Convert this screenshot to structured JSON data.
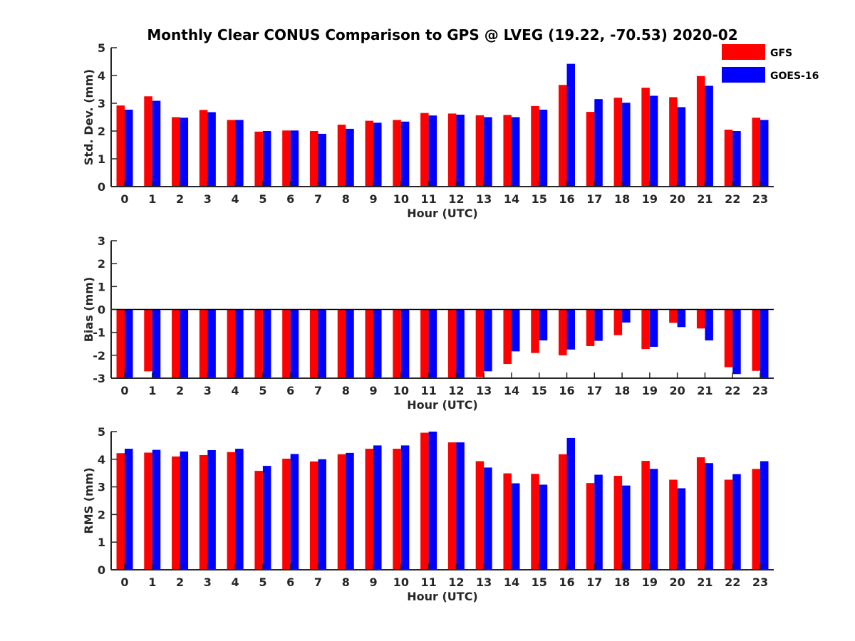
{
  "title": "Monthly Clear CONUS Comparison to GPS @ LVEG (19.22, -70.53) 2020-02",
  "legend": {
    "placement": "top-right",
    "items": [
      {
        "name": "GFS",
        "color": "#ff0000"
      },
      {
        "name": "GOES-16",
        "color": "#0000ff"
      }
    ]
  },
  "chart_data": [
    {
      "type": "bar",
      "xlabel": "Hour (UTC)",
      "ylabel": "Std. Dev. (mm)",
      "ylim": [
        0,
        5
      ],
      "yticks": [
        "0",
        "1",
        "2",
        "3",
        "4",
        "5"
      ],
      "categories": [
        "0",
        "1",
        "2",
        "3",
        "4",
        "5",
        "6",
        "7",
        "8",
        "9",
        "10",
        "11",
        "12",
        "13",
        "14",
        "15",
        "16",
        "17",
        "18",
        "19",
        "20",
        "21",
        "22",
        "23"
      ],
      "series": [
        {
          "name": "GFS",
          "values": [
            2.92,
            3.25,
            2.5,
            2.76,
            2.4,
            1.98,
            2.02,
            2.0,
            2.23,
            2.37,
            2.4,
            2.65,
            2.63,
            2.57,
            2.58,
            2.9,
            3.66,
            2.69,
            3.2,
            3.56,
            3.22,
            3.98,
            2.05,
            2.48
          ]
        },
        {
          "name": "GOES-16",
          "values": [
            2.77,
            3.09,
            2.48,
            2.68,
            2.4,
            2.0,
            2.02,
            1.9,
            2.08,
            2.3,
            2.34,
            2.56,
            2.59,
            2.5,
            2.5,
            2.77,
            4.42,
            3.15,
            3.02,
            3.27,
            2.86,
            3.63,
            2.0,
            2.4
          ]
        }
      ]
    },
    {
      "type": "bar",
      "xlabel": "Hour (UTC)",
      "ylabel": "Bias (mm)",
      "ylim": [
        -3,
        3
      ],
      "yticks": [
        "-3",
        "-2",
        "-1",
        "0",
        "1",
        "2",
        "3"
      ],
      "categories": [
        "0",
        "1",
        "2",
        "3",
        "4",
        "5",
        "6",
        "7",
        "8",
        "9",
        "10",
        "11",
        "12",
        "13",
        "14",
        "15",
        "16",
        "17",
        "18",
        "19",
        "20",
        "21",
        "22",
        "23"
      ],
      "series": [
        {
          "name": "GFS",
          "values": [
            -3.0,
            -2.7,
            -3.0,
            -3.0,
            -3.0,
            -3.0,
            -3.0,
            -3.0,
            -3.0,
            -3.0,
            -3.0,
            -3.0,
            -3.0,
            -2.95,
            -2.38,
            -1.9,
            -2.0,
            -1.6,
            -1.12,
            -1.73,
            -0.58,
            -0.83,
            -2.52,
            -2.68
          ]
        },
        {
          "name": "GOES-16",
          "values": [
            -3.0,
            -3.0,
            -3.0,
            -3.0,
            -3.0,
            -3.0,
            -3.0,
            -3.0,
            -3.0,
            -3.0,
            -3.0,
            -3.0,
            -3.0,
            -2.7,
            -1.83,
            -1.35,
            -1.75,
            -1.37,
            -0.57,
            -1.63,
            -0.77,
            -1.35,
            -2.82,
            -3.0
          ]
        }
      ]
    },
    {
      "type": "bar",
      "xlabel": "Hour (UTC)",
      "ylabel": "RMS (mm)",
      "ylim": [
        0,
        5
      ],
      "yticks": [
        "0",
        "1",
        "2",
        "3",
        "4",
        "5"
      ],
      "categories": [
        "0",
        "1",
        "2",
        "3",
        "4",
        "5",
        "6",
        "7",
        "8",
        "9",
        "10",
        "11",
        "12",
        "13",
        "14",
        "15",
        "16",
        "17",
        "18",
        "19",
        "20",
        "21",
        "22",
        "23"
      ],
      "series": [
        {
          "name": "GFS",
          "values": [
            4.22,
            4.24,
            4.1,
            4.15,
            4.26,
            3.58,
            4.02,
            3.92,
            4.18,
            4.38,
            4.38,
            4.96,
            4.61,
            3.93,
            3.49,
            3.47,
            4.18,
            3.14,
            3.4,
            3.94,
            3.26,
            4.07,
            3.26,
            3.65
          ]
        },
        {
          "name": "GOES-16",
          "values": [
            4.38,
            4.34,
            4.28,
            4.33,
            4.38,
            3.76,
            4.19,
            4.0,
            4.23,
            4.5,
            4.5,
            5.0,
            4.61,
            3.7,
            3.13,
            3.08,
            4.77,
            3.44,
            3.05,
            3.65,
            2.95,
            3.86,
            3.46,
            3.93
          ]
        }
      ]
    }
  ]
}
